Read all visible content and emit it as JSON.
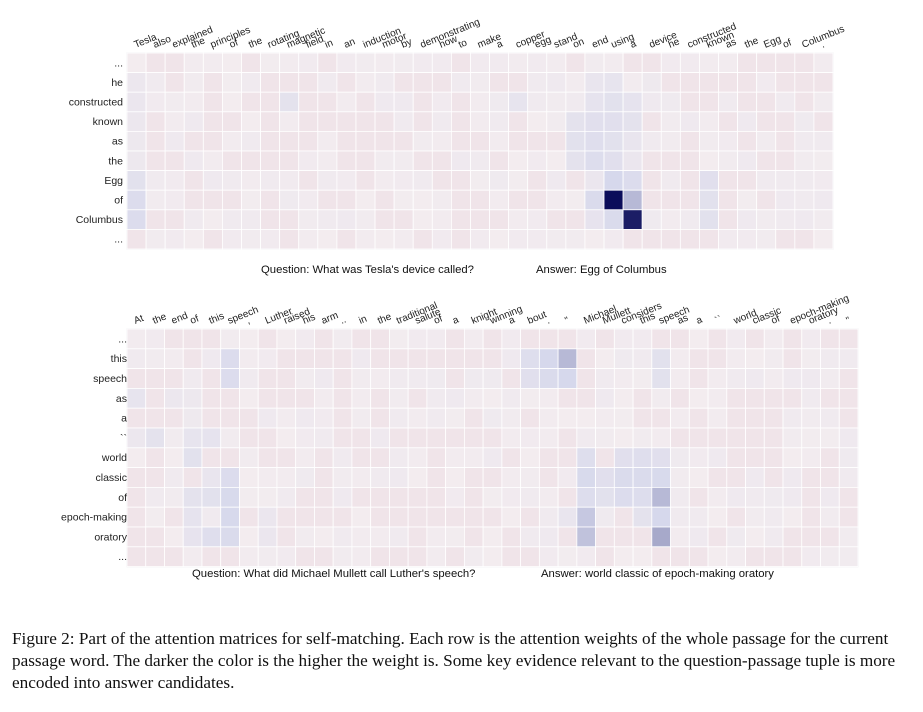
{
  "figure": {
    "panels": [
      {
        "columns": [
          "Tesla",
          "also",
          "explained",
          "the",
          "principles",
          "of",
          "the",
          "rotating",
          "magnetic",
          "field",
          "in",
          "an",
          "induction",
          "motor",
          "by",
          "demonstrating",
          "how",
          "to",
          "make",
          "a",
          "copper",
          "egg",
          "stand",
          "on",
          "end",
          "using",
          "a",
          "device",
          "he",
          "constructed",
          "known",
          "as",
          "the",
          "Egg",
          "of",
          "Columbus",
          "."
        ],
        "rows": [
          "...",
          "he",
          "constructed",
          "known",
          "as",
          "the",
          "Egg",
          "of",
          "Columbus",
          "..."
        ],
        "question": "Question: What was Tesla's device called?",
        "answer": "Answer: Egg of Columbus"
      },
      {
        "columns": [
          "At",
          "the",
          "end",
          "of",
          "this",
          "speech",
          ",",
          "Luther",
          "raised",
          "his",
          "arm",
          "..",
          "in",
          "the",
          "traditional",
          "salute",
          "of",
          "a",
          "knight",
          "winning",
          "a",
          "bout",
          ".",
          "\"",
          "Michael",
          "Mullett",
          "considers",
          "this",
          "speech",
          "as",
          "a",
          "``",
          "world",
          "classic",
          "of",
          "epoch-making",
          "oratory",
          ".",
          "\""
        ],
        "rows": [
          "...",
          "this",
          "speech",
          "as",
          "a",
          "``",
          "world",
          "classic",
          "of",
          "epoch-making",
          "oratory",
          "..."
        ],
        "question": "Question: What did Michael Mullett call Luther's speech?",
        "answer": "Answer: world classic of epoch-making oratory"
      }
    ]
  },
  "caption": "Figure 2: Part of the attention matrices for self-matching. Each row is the attention weights of the whole passage for the current passage word. The darker the color is the higher the weight is. Some key evidence relevant to the question-passage tuple is more encoded into answer candidates.",
  "colors": {
    "low": "#f3ecef",
    "high": "#0b0d5a"
  }
}
